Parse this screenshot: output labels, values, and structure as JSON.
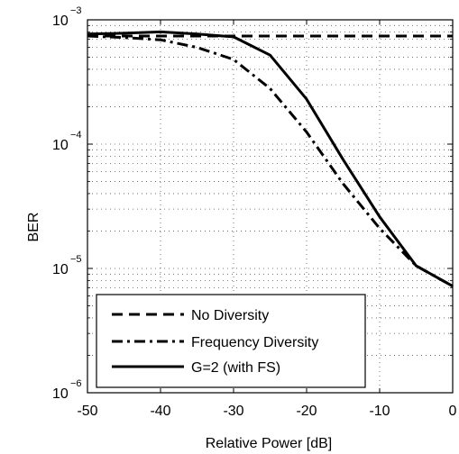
{
  "chart_data": {
    "type": "line",
    "title": "",
    "xlabel": "Relative Power [dB]",
    "ylabel": "BER",
    "xlim": [
      -50,
      0
    ],
    "ylim": [
      1e-06,
      0.001
    ],
    "y_scale": "log",
    "grid": true,
    "legend_placement": "bottom-left",
    "x_ticks": [
      "-50",
      "-40",
      "-30",
      "-20",
      "-10",
      "0"
    ],
    "y_ticks": [
      {
        "base": "10",
        "exp": "−6"
      },
      {
        "base": "10",
        "exp": "−5"
      },
      {
        "base": "10",
        "exp": "−4"
      },
      {
        "base": "10",
        "exp": "−3"
      }
    ],
    "series": [
      {
        "name": "No Diversity",
        "style": "dashed",
        "x": [
          -50,
          -45,
          -40,
          -35,
          -30,
          -25,
          -20,
          -15,
          -10,
          -5,
          0
        ],
        "y": [
          0.00074,
          0.00074,
          0.00074,
          0.00074,
          0.00074,
          0.00074,
          0.00074,
          0.00074,
          0.00074,
          0.00074,
          0.00074
        ]
      },
      {
        "name": "Frequency Diversity",
        "style": "dashdot",
        "x": [
          -50,
          -45,
          -40,
          -35,
          -30,
          -25,
          -20,
          -15,
          -10,
          -5,
          0
        ],
        "y": [
          0.00074,
          0.00072,
          0.00069,
          0.0006,
          0.00048,
          0.00028,
          0.000125,
          4.8e-05,
          2.1e-05,
          1.05e-05,
          7.2e-06
        ]
      },
      {
        "name": "G=2 (with FS)",
        "style": "solid",
        "x": [
          -50,
          -45,
          -40,
          -35,
          -30,
          -25,
          -20,
          -15,
          -10,
          -5,
          0
        ],
        "y": [
          0.00077,
          0.00078,
          0.0008,
          0.00077,
          0.00073,
          0.00052,
          0.00023,
          7.5e-05,
          2.6e-05,
          1.05e-05,
          7.2e-06
        ]
      }
    ]
  }
}
